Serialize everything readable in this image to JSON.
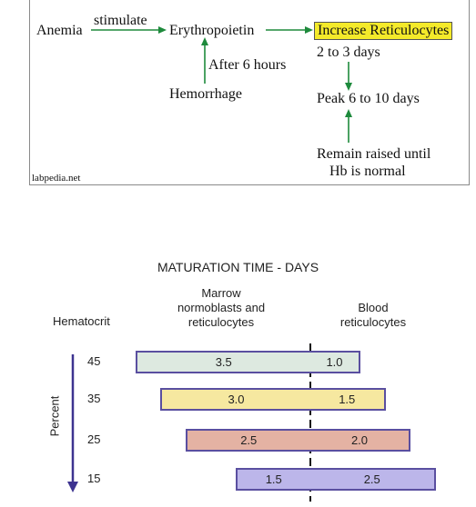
{
  "flowchart": {
    "anemia": "Anemia",
    "stimulate": "stimulate",
    "erythropoietin": "Erythropoietin",
    "increase": "Increase Reticulocytes",
    "after": "After 6 hours",
    "hemorrhage": "Hemorrhage",
    "days23": "2 to 3 days",
    "peak": "Peak 6 to 10 days",
    "remain1": "Remain raised until",
    "remain2": "Hb is normal",
    "credit": "labpedia.net",
    "colors": {
      "arrow": "#1e8a3c",
      "highlight": "#f4ea2a"
    }
  },
  "chart_data": {
    "type": "bar",
    "title": "MATURATION TIME - DAYS",
    "ylabel": "Hematocrit",
    "yunit": "Percent",
    "col1_header": [
      "Marrow",
      "normoblasts and",
      "reticulocytes"
    ],
    "col2_header": [
      "Blood",
      "reticulocytes"
    ],
    "categories": [
      "45",
      "35",
      "25",
      "15"
    ],
    "series": [
      {
        "name": "Marrow normoblasts and reticulocytes",
        "values": [
          "3.5",
          "3.0",
          "2.5",
          "1.5"
        ]
      },
      {
        "name": "Blood reticulocytes",
        "values": [
          "1.0",
          "1.5",
          "2.0",
          "2.5"
        ]
      }
    ],
    "colors": [
      "#dde9e0",
      "#f6e8a0",
      "#e4b2a3",
      "#bcb6ea"
    ]
  }
}
